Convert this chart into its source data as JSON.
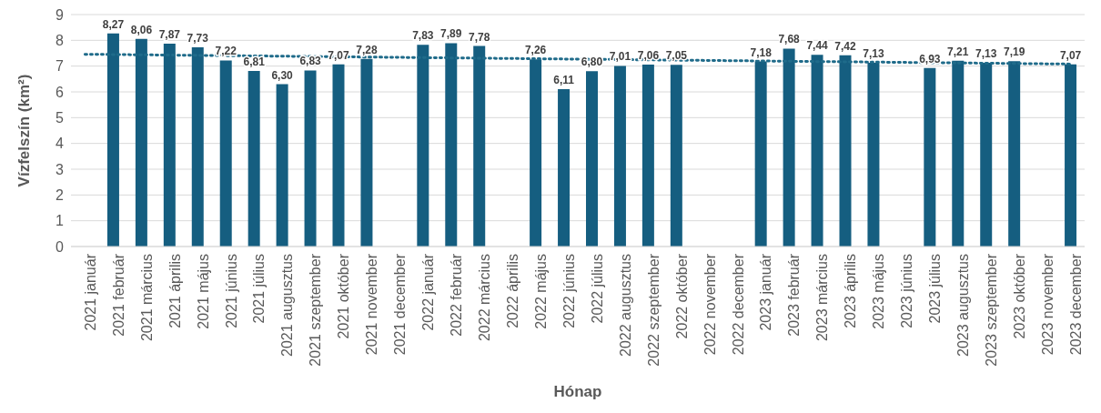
{
  "chart_data": {
    "type": "bar",
    "xlabel": "Hónap",
    "ylabel": "Vízfelszín (km²)",
    "categories": [
      "2021 január",
      "2021 február",
      "2021 március",
      "2021 április",
      "2021 május",
      "2021 június",
      "2021 július",
      "2021 augusztus",
      "2021 szeptember",
      "2021 október",
      "2021 november",
      "2021 december",
      "2022 január",
      "2022 február",
      "2022 március",
      "2022 április",
      "2022 május",
      "2022 június",
      "2022 július",
      "2022 augusztus",
      "2022 szeptember",
      "2022 október",
      "2022 november",
      "2022 december",
      "2023 január",
      "2023 február",
      "2023 március",
      "2023 április",
      "2023 május",
      "2023 június",
      "2023 július",
      "2023 augusztus",
      "2023 szeptember",
      "2023 október",
      "2023 november",
      "2023 december"
    ],
    "series": [
      {
        "color": "#155e80",
        "values": [
          null,
          8.27,
          8.06,
          7.87,
          7.73,
          7.22,
          6.81,
          6.3,
          6.83,
          7.07,
          7.28,
          null,
          7.83,
          7.89,
          7.78,
          null,
          7.26,
          6.11,
          6.8,
          7.01,
          7.06,
          7.05,
          null,
          null,
          7.18,
          7.68,
          7.44,
          7.42,
          7.13,
          null,
          6.93,
          7.21,
          7.13,
          7.19,
          null,
          7.07
        ],
        "value_labels": [
          null,
          "8,27",
          "8,06",
          "7,87",
          "7,73",
          "7,22",
          "6,81",
          "6,30",
          "6,83",
          "7,07",
          "7,28",
          null,
          "7,83",
          "7,89",
          "7,78",
          null,
          "7,26",
          "6,11",
          "6,80",
          "7,01",
          "7,06",
          "7,05",
          null,
          null,
          "7,18",
          "7,68",
          "7,44",
          "7,42",
          "7,13",
          null,
          "6,93",
          "7,21",
          "7,13",
          "7,19",
          null,
          "7,07"
        ]
      },
      {
        "type": "line",
        "color": "#1f6b8a",
        "line_style": "dotted",
        "x": [
          "2021 január",
          "2023 december"
        ],
        "values": [
          7.46,
          7.08
        ]
      }
    ],
    "ylim": [
      0,
      9
    ],
    "yticks": [
      0,
      1,
      2,
      3,
      4,
      5,
      6,
      7,
      8,
      9
    ],
    "grid": "y",
    "legend": false
  }
}
